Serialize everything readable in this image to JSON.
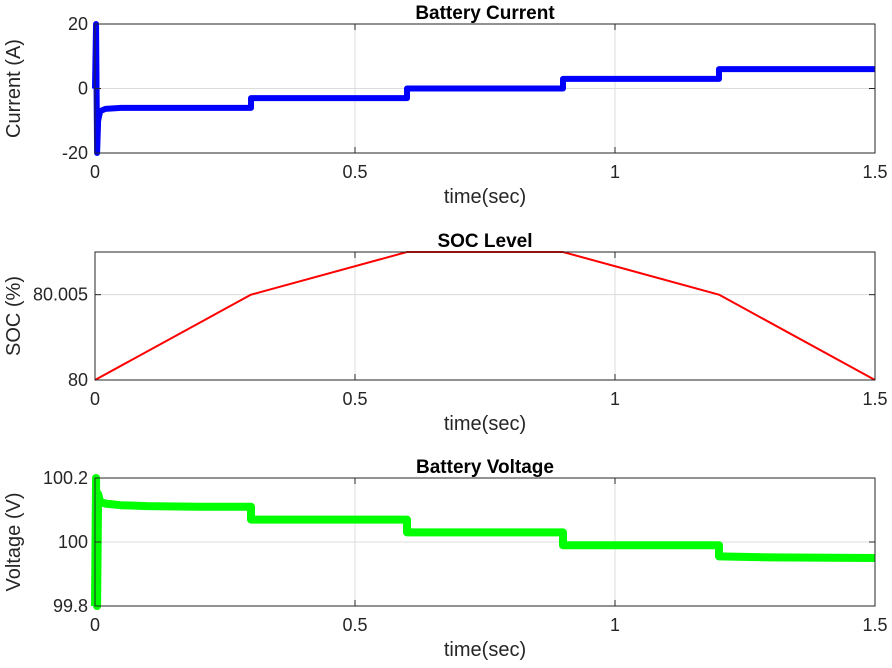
{
  "chart_data": [
    {
      "type": "line",
      "title": "Battery Current",
      "xlabel": "time(sec)",
      "ylabel": "Current (A)",
      "xlim": [
        0,
        1.5
      ],
      "ylim": [
        -20,
        20
      ],
      "xticks": [
        0,
        0.5,
        1,
        1.5
      ],
      "xtick_labels": [
        "0",
        "0.5",
        "1",
        "1.5"
      ],
      "yticks": [
        -20,
        0,
        20
      ],
      "ytick_labels": [
        "-20",
        "0",
        "20"
      ],
      "grid": true,
      "color": "#0000ff",
      "series": [
        {
          "x": [
            0,
            0.002,
            0.004,
            0.006,
            0.01,
            0.02,
            0.05,
            0.1,
            0.2,
            0.3,
            0.3,
            0.6,
            0.6,
            0.9,
            0.9,
            1.2,
            1.2,
            1.5
          ],
          "y": [
            0,
            20,
            -20,
            -10,
            -7,
            -6.3,
            -6,
            -6,
            -6,
            -6,
            -3,
            -3,
            0,
            0,
            3,
            3,
            6,
            6
          ]
        }
      ]
    },
    {
      "type": "line",
      "title": "SOC Level",
      "xlabel": "time(sec)",
      "ylabel": "SOC (%)",
      "xlim": [
        0,
        1.5
      ],
      "ylim": [
        80,
        80.0075
      ],
      "xticks": [
        0,
        0.5,
        1,
        1.5
      ],
      "xtick_labels": [
        "0",
        "0.5",
        "1",
        "1.5"
      ],
      "yticks": [
        80,
        80.005
      ],
      "ytick_labels": [
        "80",
        "80.005"
      ],
      "grid": true,
      "color": "#ff0000",
      "series": [
        {
          "x": [
            0,
            0.3,
            0.6,
            0.9,
            1.2,
            1.5
          ],
          "y": [
            80,
            80.005,
            80.0075,
            80.0075,
            80.005,
            80
          ]
        }
      ]
    },
    {
      "type": "line",
      "title": "Battery Voltage",
      "xlabel": "time(sec)",
      "ylabel": "Voltage (V)",
      "xlim": [
        0,
        1.5
      ],
      "ylim": [
        99.8,
        100.2
      ],
      "xticks": [
        0,
        0.5,
        1,
        1.5
      ],
      "xtick_labels": [
        "0",
        "0.5",
        "1",
        "1.5"
      ],
      "yticks": [
        99.8,
        100,
        100.2
      ],
      "ytick_labels": [
        "99.8",
        "100",
        "100.2"
      ],
      "grid": true,
      "color": "#00ff00",
      "series": [
        {
          "x": [
            0,
            0.002,
            0.004,
            0.006,
            0.01,
            0.02,
            0.05,
            0.1,
            0.2,
            0.3,
            0.3,
            0.6,
            0.6,
            0.9,
            0.9,
            1.2,
            1.2,
            1.3,
            1.5
          ],
          "y": [
            99.8,
            100.2,
            99.8,
            100.15,
            100.125,
            100.12,
            100.115,
            100.112,
            100.11,
            100.11,
            100.07,
            100.07,
            100.03,
            100.03,
            99.99,
            99.99,
            99.955,
            99.952,
            99.95
          ]
        }
      ]
    }
  ]
}
